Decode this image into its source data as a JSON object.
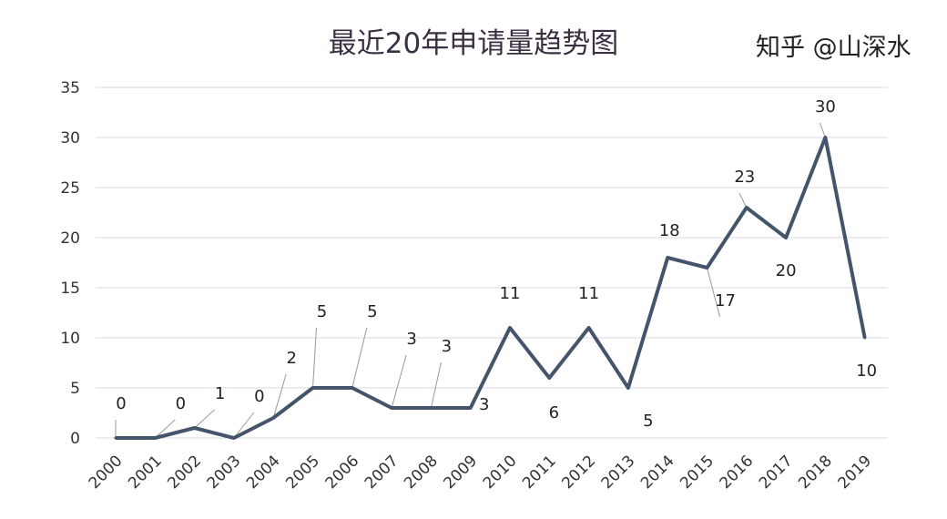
{
  "chart_data": {
    "type": "line",
    "title": "最近20年申请量趋势图",
    "xlabel": "",
    "ylabel": "",
    "categories": [
      "2000",
      "2001",
      "2002",
      "2003",
      "2004",
      "2005",
      "2006",
      "2007",
      "2008",
      "2009",
      "2010",
      "2011",
      "2012",
      "2013",
      "2014",
      "2015",
      "2016",
      "2017",
      "2018",
      "2019"
    ],
    "values": [
      0,
      0,
      1,
      0,
      2,
      5,
      5,
      3,
      3,
      3,
      11,
      6,
      11,
      5,
      18,
      17,
      23,
      20,
      30,
      10
    ],
    "ylim": [
      0,
      35
    ],
    "yticks": [
      0,
      5,
      10,
      15,
      20,
      25,
      30,
      35
    ],
    "grid": true,
    "legend": "none",
    "data_labels": true,
    "line_color": "#44546a",
    "grid_color": "#d9d9e3"
  },
  "watermark": "知乎 @山深水"
}
